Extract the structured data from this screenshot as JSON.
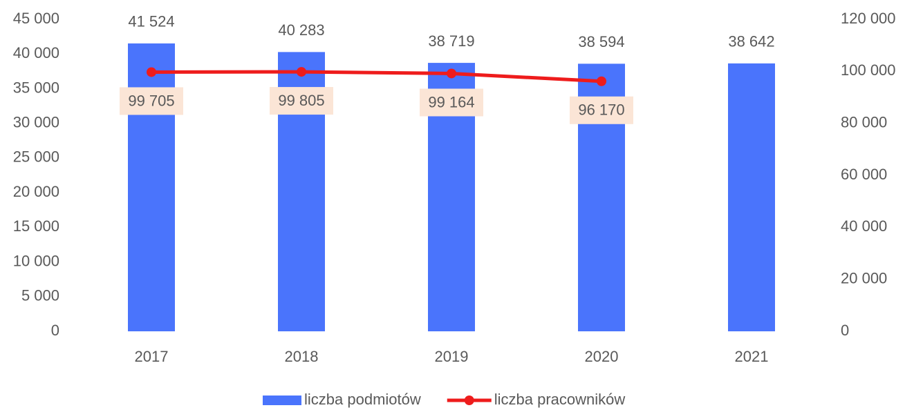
{
  "chart_data": {
    "type": "bar",
    "categories": [
      "2017",
      "2018",
      "2019",
      "2020",
      "2021"
    ],
    "series": [
      {
        "name": "liczba podmiotów",
        "type": "bar",
        "color": "#4a74fc",
        "values": [
          41524,
          40283,
          38719,
          38594,
          38642
        ],
        "value_labels": [
          "41 524",
          "40 283",
          "38 719",
          "38 594",
          "38 642"
        ]
      },
      {
        "name": "liczba pracowników",
        "type": "line",
        "color": "#ee1c1c",
        "axis": "y2",
        "values": [
          99705,
          99805,
          99164,
          96170,
          null
        ],
        "value_labels": [
          "99 705",
          "99 805",
          "99 164",
          "96 170",
          null
        ]
      }
    ],
    "ylim": [
      0,
      45000
    ],
    "yticks": [
      0,
      {
        "value": 5000,
        "label": "5 000"
      },
      {
        "value": 10000,
        "label": "10 000"
      },
      {
        "value": 15000,
        "label": "15 000"
      },
      {
        "value": 20000,
        "label": "20 000"
      },
      {
        "value": 25000,
        "label": "25 000"
      },
      {
        "value": 30000,
        "label": "30 000"
      },
      {
        "value": 35000,
        "label": "35 000"
      },
      {
        "value": 40000,
        "label": "40 000"
      },
      {
        "value": 45000,
        "label": "45 000"
      }
    ],
    "y2lim": [
      0,
      120000
    ],
    "y2ticks": [
      0,
      {
        "value": 20000,
        "label": "20 000"
      },
      {
        "value": 40000,
        "label": "40 000"
      },
      {
        "value": 60000,
        "label": "60 000"
      },
      {
        "value": 80000,
        "label": "80 000"
      },
      {
        "value": 100000,
        "label": "100 000"
      },
      {
        "value": 120000,
        "label": "120 000"
      }
    ],
    "grid": false,
    "legend": "bottom"
  }
}
